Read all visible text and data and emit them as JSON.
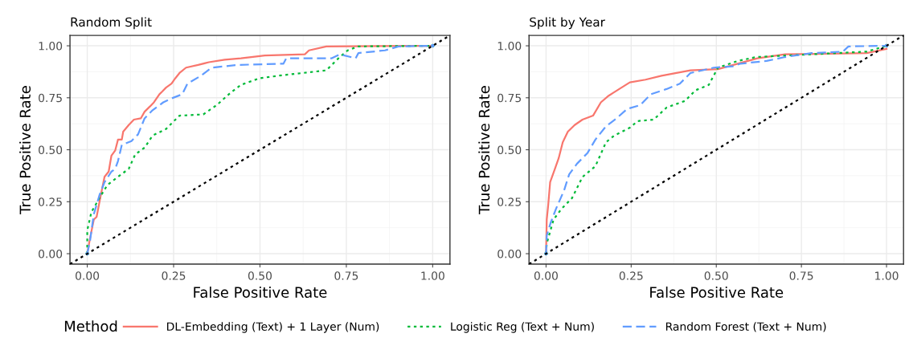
{
  "chart_data": [
    {
      "type": "line",
      "title": "Random Split",
      "xlabel": "False Positive Rate",
      "ylabel": "True Positive Rate",
      "xlim": [
        -0.05,
        1.05
      ],
      "ylim": [
        -0.05,
        1.05
      ],
      "xticks": [
        {
          "value": 0,
          "label": "0.00"
        },
        {
          "value": 0.25,
          "label": "0.25"
        },
        {
          "value": 0.5,
          "label": "0.50"
        },
        {
          "value": 0.75,
          "label": "0.75"
        },
        {
          "value": 1,
          "label": "1.00"
        }
      ],
      "yticks": [
        {
          "value": 0,
          "label": "0.00"
        },
        {
          "value": 0.25,
          "label": "0.25"
        },
        {
          "value": 0.5,
          "label": "0.50"
        },
        {
          "value": 0.75,
          "label": "0.75"
        },
        {
          "value": 1,
          "label": "1.00"
        }
      ],
      "grid": true,
      "legend": "bottom",
      "legend_title": "Method",
      "series": [
        {
          "name": "DL-Embedding (Text) + 1 Layer (Num)",
          "color": "#f8766d",
          "line_style": "solid",
          "x": [
            0,
            0.008,
            0.019,
            0.027,
            0.039,
            0.05,
            0.062,
            0.07,
            0.081,
            0.089,
            0.1,
            0.104,
            0.12,
            0.135,
            0.155,
            0.166,
            0.182,
            0.193,
            0.209,
            0.217,
            0.228,
            0.244,
            0.255,
            0.267,
            0.286,
            0.321,
            0.352,
            0.398,
            0.445,
            0.514,
            0.63,
            0.642,
            0.692,
            1
          ],
          "values": [
            0,
            0.074,
            0.164,
            0.177,
            0.28,
            0.37,
            0.395,
            0.472,
            0.497,
            0.549,
            0.549,
            0.587,
            0.619,
            0.645,
            0.651,
            0.683,
            0.709,
            0.728,
            0.767,
            0.78,
            0.799,
            0.818,
            0.844,
            0.869,
            0.895,
            0.908,
            0.921,
            0.933,
            0.94,
            0.953,
            0.959,
            0.978,
            0.997,
            1
          ]
        },
        {
          "name": "Logistic Reg (Text + Num)",
          "color": "#00ba38",
          "line_style": "dotted",
          "x": [
            0,
            0,
            0.012,
            0.035,
            0.058,
            0.089,
            0.12,
            0.139,
            0.166,
            0.189,
            0.228,
            0.267,
            0.336,
            0.375,
            0.414,
            0.445,
            0.499,
            0.553,
            0.692,
            0.731,
            0.754,
            0.785,
            1
          ],
          "values": [
            0,
            0.113,
            0.2,
            0.267,
            0.33,
            0.37,
            0.408,
            0.478,
            0.51,
            0.568,
            0.6,
            0.664,
            0.67,
            0.715,
            0.773,
            0.812,
            0.844,
            0.856,
            0.882,
            0.946,
            0.978,
            0.997,
            1
          ]
        },
        {
          "name": "Random Forest (Text + Num)",
          "color": "#619cff",
          "line_style": "dashed",
          "x": [
            0,
            0.008,
            0.019,
            0.035,
            0.05,
            0.07,
            0.081,
            0.089,
            0.1,
            0.128,
            0.147,
            0.166,
            0.189,
            0.22,
            0.244,
            0.275,
            0.29,
            0.329,
            0.36,
            0.437,
            0.568,
            0.576,
            0.708,
            0.731,
            0.777,
            0.785,
            0.862,
            0.901,
            1
          ],
          "values": [
            0,
            0.062,
            0.19,
            0.28,
            0.344,
            0.395,
            0.408,
            0.446,
            0.523,
            0.542,
            0.574,
            0.651,
            0.69,
            0.728,
            0.747,
            0.767,
            0.818,
            0.856,
            0.895,
            0.908,
            0.914,
            0.94,
            0.94,
            0.959,
            0.94,
            0.965,
            0.978,
            0.997,
            1
          ]
        },
        {
          "color": "#000000",
          "line_style": "dotted",
          "x": [
            -0.05,
            1.05
          ],
          "values": [
            -0.05,
            1.05
          ]
        }
      ]
    },
    {
      "type": "line",
      "title": "Split by Year",
      "xlabel": "False Positive Rate",
      "ylabel": "True Positive Rate",
      "xlim": [
        -0.05,
        1.05
      ],
      "ylim": [
        -0.05,
        1.05
      ],
      "xticks": [
        {
          "value": 0,
          "label": "0.00"
        },
        {
          "value": 0.25,
          "label": "0.25"
        },
        {
          "value": 0.5,
          "label": "0.50"
        },
        {
          "value": 0.75,
          "label": "0.75"
        },
        {
          "value": 1,
          "label": "1.00"
        }
      ],
      "yticks": [
        {
          "value": 0,
          "label": "0.00"
        },
        {
          "value": 0.25,
          "label": "0.25"
        },
        {
          "value": 0.5,
          "label": "0.50"
        },
        {
          "value": 0.75,
          "label": "0.75"
        },
        {
          "value": 1,
          "label": "1.00"
        }
      ],
      "grid": true,
      "series": [
        {
          "name": "DL-Embedding (Text) + 1 Layer (Num)",
          "color": "#f8766d",
          "line_style": "solid",
          "x": [
            0,
            0.002,
            0.006,
            0.012,
            0.026,
            0.037,
            0.049,
            0.064,
            0.084,
            0.107,
            0.138,
            0.161,
            0.184,
            0.215,
            0.246,
            0.292,
            0.339,
            0.424,
            0.505,
            0.563,
            0.621,
            0.702,
            0.942,
            1
          ],
          "values": [
            0,
            0.164,
            0.228,
            0.344,
            0.408,
            0.459,
            0.536,
            0.587,
            0.619,
            0.645,
            0.664,
            0.728,
            0.76,
            0.792,
            0.824,
            0.837,
            0.856,
            0.882,
            0.888,
            0.914,
            0.94,
            0.959,
            0.965,
            0.985
          ]
        },
        {
          "name": "Logistic Reg (Text + Num)",
          "color": "#00ba38",
          "line_style": "dotted",
          "x": [
            0,
            0.002,
            0.022,
            0.045,
            0.076,
            0.107,
            0.145,
            0.176,
            0.2,
            0.246,
            0.269,
            0.316,
            0.354,
            0.408,
            0.439,
            0.478,
            0.505,
            0.563,
            0.617,
            0.942,
            1
          ],
          "values": [
            0,
            0.049,
            0.164,
            0.215,
            0.267,
            0.369,
            0.421,
            0.536,
            0.568,
            0.606,
            0.638,
            0.645,
            0.703,
            0.735,
            0.786,
            0.812,
            0.895,
            0.927,
            0.946,
            0.972,
            1
          ]
        },
        {
          "name": "Random Forest (Text + Num)",
          "color": "#619cff",
          "line_style": "dashed",
          "x": [
            0,
            0.002,
            0.014,
            0.029,
            0.053,
            0.068,
            0.091,
            0.122,
            0.145,
            0.176,
            0.207,
            0.238,
            0.277,
            0.308,
            0.354,
            0.393,
            0.424,
            0.493,
            0.548,
            0.571,
            0.648,
            0.702,
            0.78,
            0.872,
            0.888,
            1
          ],
          "values": [
            0,
            0.087,
            0.151,
            0.215,
            0.305,
            0.382,
            0.433,
            0.485,
            0.549,
            0.613,
            0.651,
            0.696,
            0.715,
            0.767,
            0.792,
            0.818,
            0.869,
            0.895,
            0.901,
            0.914,
            0.927,
            0.946,
            0.965,
            0.972,
            0.997,
            1
          ]
        },
        {
          "color": "#000000",
          "line_style": "dotted",
          "x": [
            -0.05,
            1.05
          ],
          "values": [
            -0.05,
            1.05
          ]
        }
      ]
    }
  ]
}
